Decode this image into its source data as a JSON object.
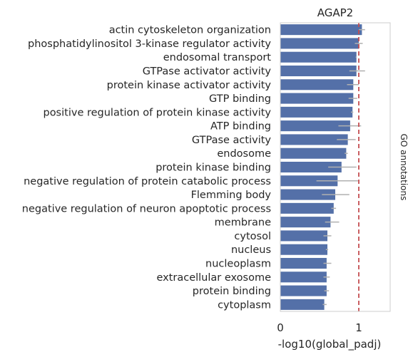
{
  "chart_data": {
    "type": "bar",
    "orientation": "horizontal",
    "title": "AGAP2",
    "xlabel": "-log10(global_padj)",
    "ylabel": "GO annotations",
    "xlim": [
      0,
      1.4
    ],
    "xticks": [
      0,
      1
    ],
    "xtick_labels": [
      "0",
      "1"
    ],
    "reference_line": {
      "x": 1.0,
      "color": "#c44e52",
      "style": "dashed"
    },
    "bar_color": "#5470a8",
    "errorbar_color": "#b0b0b0",
    "grid": false,
    "categories": [
      "actin cytoskeleton organization",
      "phosphatidylinositol 3-kinase regulator activity",
      "endosomal transport",
      "GTPase activator activity",
      "protein kinase activator activity",
      "GTP binding",
      "positive regulation of protein kinase activity",
      "ATP binding",
      "GTPase activity",
      "endosome",
      "protein kinase binding",
      "negative regulation of protein catabolic process",
      "Flemming body",
      "negative regulation of neuron apoptotic process",
      "membrane",
      "cytosol",
      "nucleus",
      "nucleoplasm",
      "extracellular exosome",
      "protein binding",
      "cytoplasm"
    ],
    "values": [
      1.04,
      1.0,
      0.97,
      0.97,
      0.93,
      0.93,
      0.92,
      0.89,
      0.86,
      0.84,
      0.78,
      0.73,
      0.7,
      0.68,
      0.64,
      0.6,
      0.6,
      0.59,
      0.59,
      0.59,
      0.56
    ],
    "err_low": [
      1.0,
      0.95,
      0.96,
      0.88,
      0.85,
      0.87,
      0.9,
      0.74,
      0.72,
      0.82,
      0.61,
      0.46,
      0.53,
      0.65,
      0.57,
      0.55,
      0.58,
      0.55,
      0.55,
      0.56,
      0.54
    ],
    "err_high": [
      1.08,
      1.05,
      0.97,
      1.08,
      1.0,
      0.98,
      0.93,
      1.03,
      0.96,
      0.86,
      0.97,
      0.99,
      0.88,
      0.71,
      0.75,
      0.65,
      0.61,
      0.65,
      0.63,
      0.62,
      0.59
    ]
  }
}
